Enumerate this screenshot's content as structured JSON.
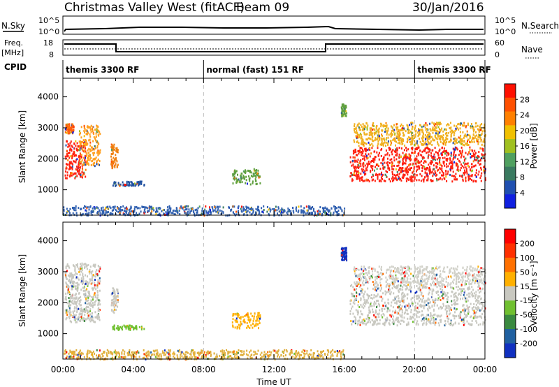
{
  "header": {
    "title": "Christmas Valley West (fitACF)",
    "beam": "Beam 09",
    "date": "30/Jan/2016"
  },
  "top_panels": {
    "nsky_label": "N.Sky",
    "nsky_ticks": [
      "10^5",
      "10^0"
    ],
    "nsearch_label": "N.Search",
    "nsearch_ticks": [
      "10^5",
      "10^0"
    ],
    "freq_label_1": "Freq.",
    "freq_label_2": "[MHz]",
    "freq_ticks": [
      "18",
      "8"
    ],
    "nave_label": "Nave",
    "nave_ticks": [
      "60",
      "0"
    ],
    "cpid_label": "CPID",
    "cpid_segments": [
      {
        "label": "themis 3300 RF",
        "start_h": 0,
        "end_h": 8
      },
      {
        "label": "normal (fast) 151 RF",
        "start_h": 8,
        "end_h": 20
      },
      {
        "label": "themis 3300 RF",
        "start_h": 20,
        "end_h": 24
      }
    ]
  },
  "xaxis": {
    "label": "Time UT",
    "ticks": [
      "00:00",
      "04:00",
      "08:00",
      "12:00",
      "16:00",
      "20:00",
      "00:00"
    ]
  },
  "chart_data": [
    {
      "type": "heatmap",
      "name": "power",
      "ylabel": "Slant Range [km]",
      "yticks": [
        "4000",
        "3000",
        "2000",
        "1000"
      ],
      "ylim": [
        180,
        4600
      ],
      "xlim": [
        0,
        24
      ],
      "colorbar_label": "Power [dB]",
      "colorbar_ticks": [
        "28",
        "24",
        "20",
        "16",
        "12",
        "8",
        "4"
      ],
      "colors": [
        "#1020e0",
        "#2050b0",
        "#3a7a60",
        "#50a060",
        "#a0c020",
        "#f0c000",
        "#ff8000",
        "#ff5000",
        "#ff1000"
      ],
      "regions": [
        {
          "t0": 0.1,
          "t1": 1.3,
          "r0": 1400,
          "r1": 2600,
          "color": "#ff2010"
        },
        {
          "t0": 0.1,
          "t1": 0.6,
          "r0": 2850,
          "r1": 3150,
          "color": "#ff6010"
        },
        {
          "t0": 0.9,
          "t1": 2.1,
          "r0": 1800,
          "r1": 3100,
          "color": "#ffa020"
        },
        {
          "t0": 2.7,
          "t1": 3.1,
          "r0": 1700,
          "r1": 2500,
          "color": "#f08010"
        },
        {
          "t0": 2.8,
          "t1": 4.6,
          "r0": 1150,
          "r1": 1300,
          "color": "#2050a0"
        },
        {
          "t0": 9.6,
          "t1": 11.2,
          "r0": 1200,
          "r1": 1700,
          "color": "#60a040"
        },
        {
          "t0": 15.8,
          "t1": 16.1,
          "r0": 3400,
          "r1": 3800,
          "color": "#60a040"
        },
        {
          "t0": 16.3,
          "t1": 24,
          "r0": 1300,
          "r1": 2400,
          "color": "#ff2010"
        },
        {
          "t0": 16.5,
          "t1": 24,
          "r0": 2450,
          "r1": 3200,
          "color": "#f0b020"
        },
        {
          "t0": 0,
          "t1": 16,
          "r0": 200,
          "r1": 500,
          "color": "#3060b0"
        }
      ]
    },
    {
      "type": "heatmap",
      "name": "velocity",
      "ylabel": "Slant Range [km]",
      "yticks": [
        "4000",
        "3000",
        "2000",
        "1000"
      ],
      "ylim": [
        180,
        4600
      ],
      "xlim": [
        0,
        24
      ],
      "colorbar_label": "Velocity [m s⁻¹]",
      "colorbar_ticks": [
        "200",
        "100",
        "50",
        "15",
        "-15",
        "-50",
        "-100",
        "-200"
      ],
      "colors": [
        "#1030c0",
        "#2060a0",
        "#3a8a40",
        "#70c030",
        "#c8c8c0",
        "#ffb000",
        "#ff7000",
        "#ff3000",
        "#ff0000"
      ],
      "regions": [
        {
          "t0": 0.1,
          "t1": 2.1,
          "r0": 1400,
          "r1": 3300,
          "color": "#c8c8c0"
        },
        {
          "t0": 2.7,
          "t1": 3.1,
          "r0": 1700,
          "r1": 2500,
          "color": "#c8c8c0"
        },
        {
          "t0": 2.8,
          "t1": 4.6,
          "r0": 1150,
          "r1": 1300,
          "color": "#70c030"
        },
        {
          "t0": 9.6,
          "t1": 11.2,
          "r0": 1200,
          "r1": 1700,
          "color": "#ffb000"
        },
        {
          "t0": 15.8,
          "t1": 16.1,
          "r0": 3400,
          "r1": 3800,
          "color": "#1030c0"
        },
        {
          "t0": 16.3,
          "t1": 24,
          "r0": 1300,
          "r1": 2600,
          "color": "#c8c8c0"
        },
        {
          "t0": 16.5,
          "t1": 24,
          "r0": 2600,
          "r1": 3200,
          "color": "#d0d0c8"
        },
        {
          "t0": 0,
          "t1": 16,
          "r0": 200,
          "r1": 500,
          "color": "#e0b040"
        }
      ]
    }
  ]
}
